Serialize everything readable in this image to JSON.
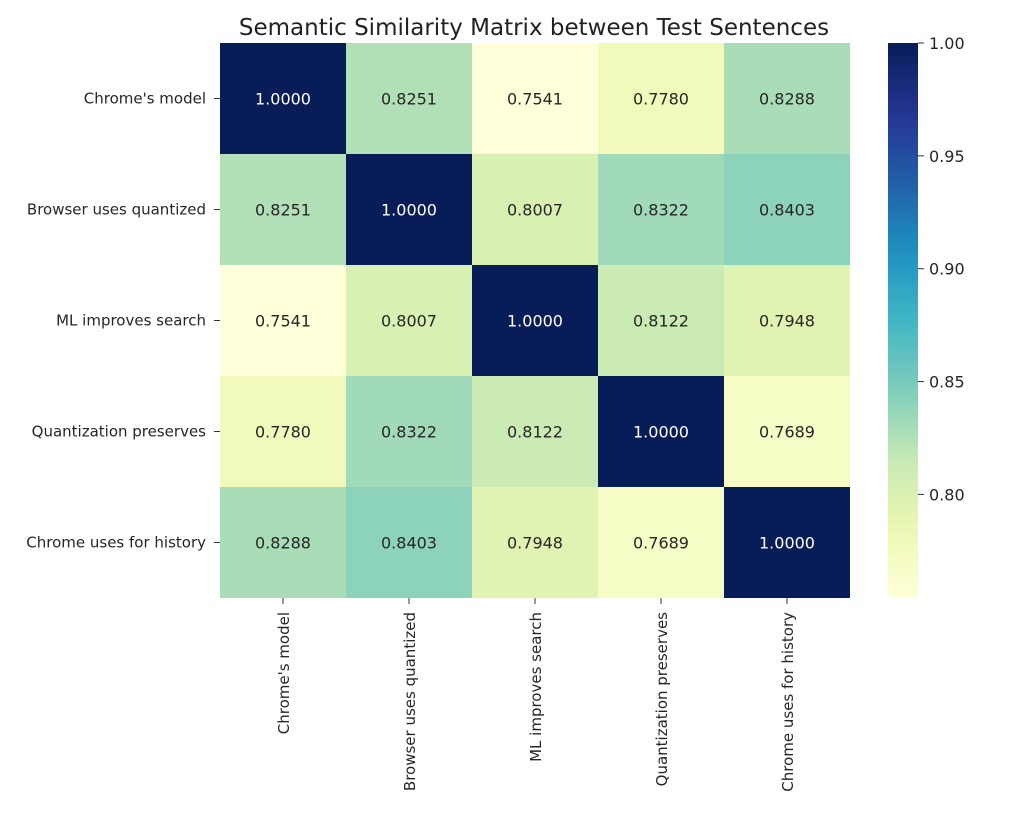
{
  "chart_data": {
    "type": "heatmap",
    "title": "Semantic Similarity Matrix between Test Sentences",
    "row_labels": [
      "Chrome's model",
      "Browser uses quantized",
      "ML improves search",
      "Quantization preserves",
      "Chrome uses for history"
    ],
    "col_labels": [
      "Chrome's model",
      "Browser uses quantized",
      "ML improves search",
      "Quantization preserves",
      "Chrome uses for history"
    ],
    "values": [
      [
        1.0,
        0.8251,
        0.7541,
        0.778,
        0.8288
      ],
      [
        0.8251,
        1.0,
        0.8007,
        0.8322,
        0.8403
      ],
      [
        0.7541,
        0.8007,
        1.0,
        0.8122,
        0.7948
      ],
      [
        0.778,
        0.8322,
        0.8122,
        1.0,
        0.7689
      ],
      [
        0.8288,
        0.8403,
        0.7948,
        0.7689,
        1.0
      ]
    ],
    "cell_labels": [
      [
        "1.0000",
        "0.8251",
        "0.7541",
        "0.7780",
        "0.8288"
      ],
      [
        "0.8251",
        "1.0000",
        "0.8007",
        "0.8322",
        "0.8403"
      ],
      [
        "0.7541",
        "0.8007",
        "1.0000",
        "0.8122",
        "0.7948"
      ],
      [
        "0.7780",
        "0.8322",
        "0.8122",
        "1.0000",
        "0.7689"
      ],
      [
        "0.8288",
        "0.8403",
        "0.7948",
        "0.7689",
        "1.0000"
      ]
    ],
    "colormap": "YlGnBu",
    "value_range": [
      0.7541,
      1.0
    ],
    "colorbar": {
      "ticks": [
        0.8,
        0.85,
        0.9,
        0.95,
        1.0
      ],
      "tick_labels": [
        "0.80",
        "0.85",
        "0.90",
        "0.95",
        "1.00"
      ],
      "placement": "right"
    }
  }
}
